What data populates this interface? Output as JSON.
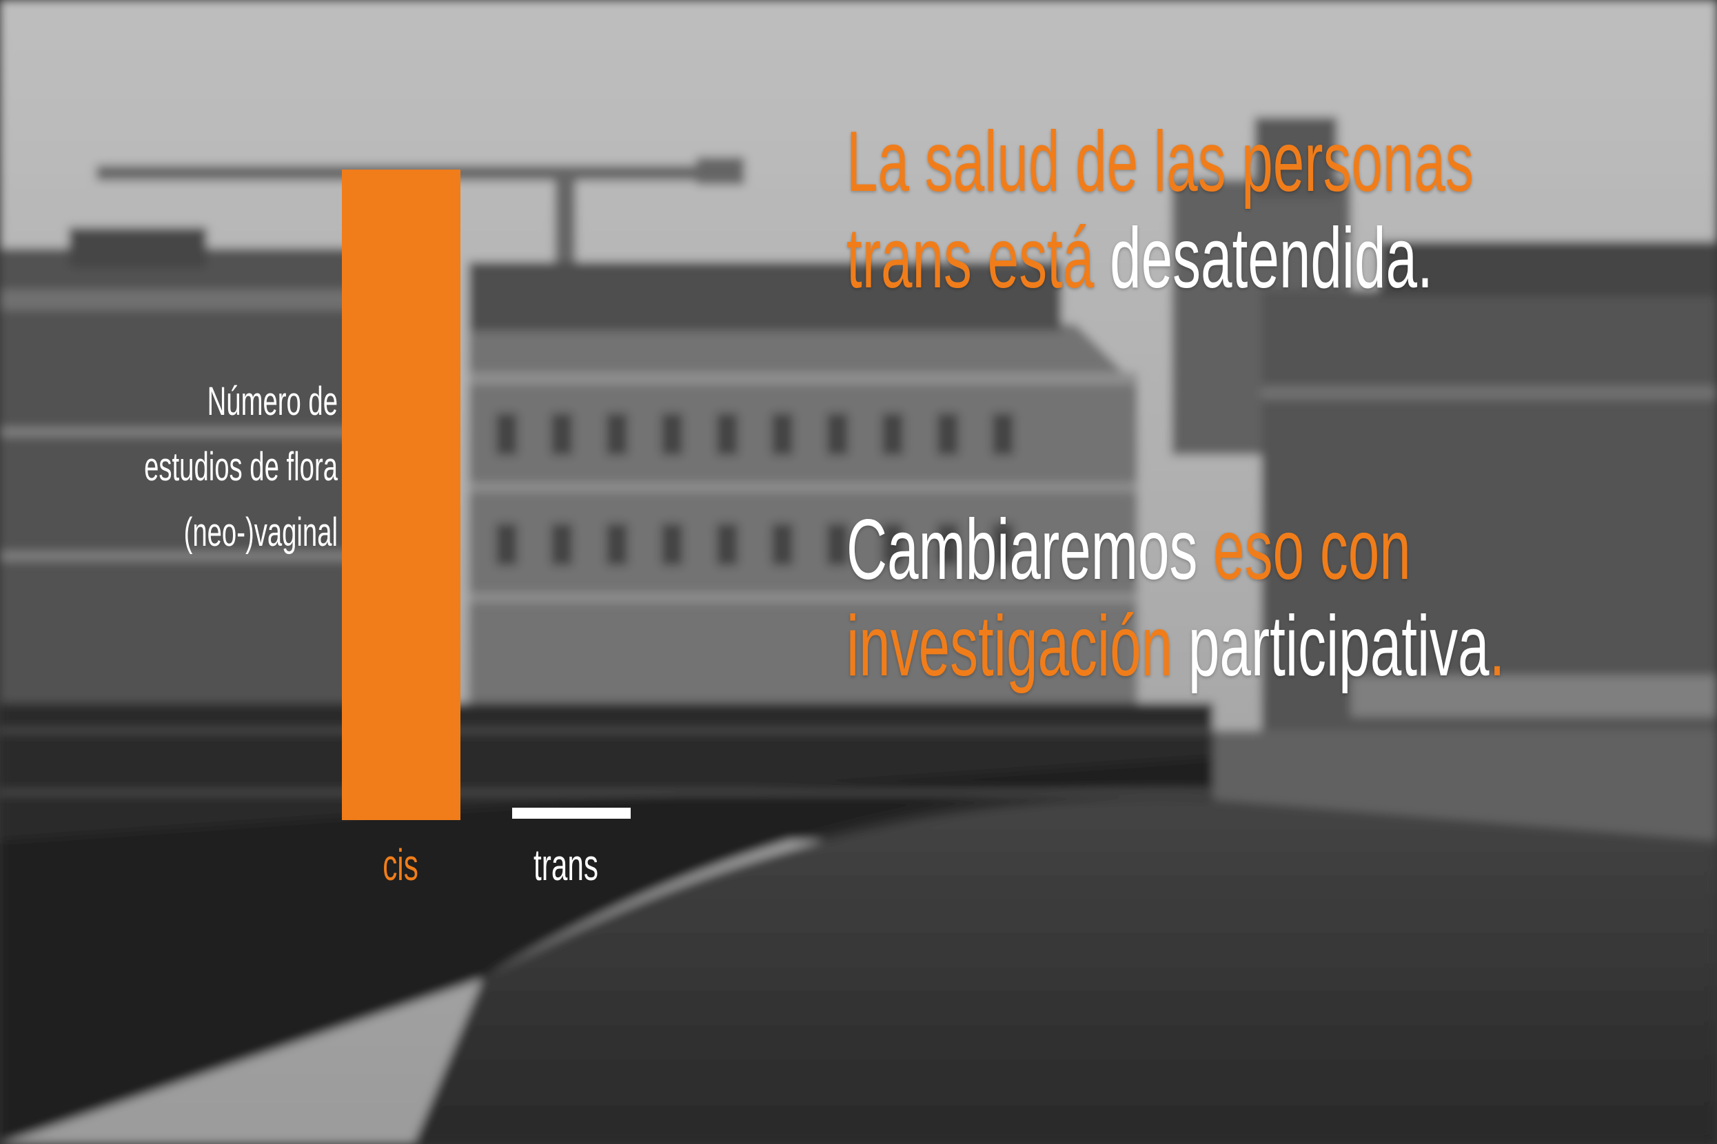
{
  "colors": {
    "accent": "#f07d1a",
    "text": "#ffffff",
    "photo_tone": "grayscale"
  },
  "background": {
    "description_icon": "paris-bridge-photo"
  },
  "headline_1": [
    {
      "text": "La salud de las personas",
      "color": "accent",
      "line": 1
    },
    {
      "text": "trans está ",
      "color": "accent",
      "line": 2
    },
    {
      "text": "desatendida.",
      "color": "text",
      "line": 2
    }
  ],
  "headline_2": [
    {
      "text": "Cambiaremos ",
      "color": "text",
      "line": 1
    },
    {
      "text": "eso con",
      "color": "accent",
      "line": 1
    },
    {
      "text": "investigación ",
      "color": "accent",
      "line": 2
    },
    {
      "text": "participativa",
      "color": "text",
      "line": 2
    },
    {
      "text": ".",
      "color": "accent",
      "line": 2
    }
  ],
  "chart_data": {
    "type": "bar",
    "categories": [
      "cis",
      "trans"
    ],
    "values": [
      100,
      1
    ],
    "ylabel_lines": [
      "Número de",
      "estudios de flora",
      "(neo-)vaginal"
    ],
    "title": "",
    "xlabel": "",
    "ylim": [
      0,
      100
    ],
    "axis_ticks": false,
    "grid": false,
    "bar_colors": [
      "#f07d1a",
      "#ffffff"
    ],
    "label_colors": [
      "#f07d1a",
      "#ffffff"
    ]
  }
}
